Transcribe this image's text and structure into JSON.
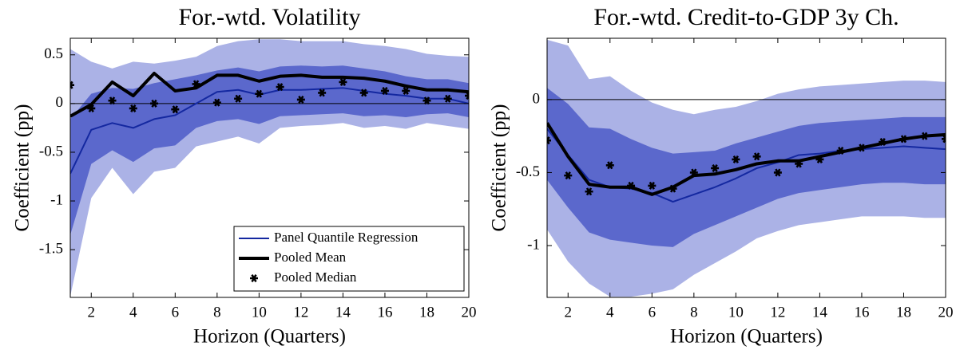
{
  "chart_data": [
    {
      "type": "line",
      "title": "For.-wtd. Volatility",
      "xlabel": "Horizon (Quarters)",
      "ylabel": "Coefficient (pp)",
      "x": [
        1,
        2,
        3,
        4,
        5,
        6,
        7,
        8,
        9,
        10,
        11,
        12,
        13,
        14,
        15,
        16,
        17,
        18,
        19,
        20
      ],
      "xlim": [
        1,
        20
      ],
      "xticks": [
        2,
        4,
        6,
        8,
        10,
        12,
        14,
        16,
        18,
        20
      ],
      "ylim": [
        -1.99,
        0.67
      ],
      "yticks": [
        -1.5,
        -1,
        -0.5,
        0,
        0.5
      ],
      "hline": 0,
      "legend": "lower right",
      "bands": [
        {
          "color": "#abb2e6",
          "upper": [
            0.56,
            0.43,
            0.36,
            0.43,
            0.41,
            0.44,
            0.48,
            0.59,
            0.64,
            0.66,
            0.66,
            0.64,
            0.64,
            0.64,
            0.61,
            0.59,
            0.56,
            0.51,
            0.49,
            0.48
          ],
          "lower": [
            -1.98,
            -0.97,
            -0.66,
            -0.93,
            -0.7,
            -0.66,
            -0.44,
            -0.39,
            -0.34,
            -0.41,
            -0.25,
            -0.23,
            -0.22,
            -0.2,
            -0.25,
            -0.23,
            -0.26,
            -0.2,
            -0.23,
            -0.26
          ]
        },
        {
          "color": "#5b68cc",
          "upper": [
            -0.16,
            0.1,
            0.16,
            0.15,
            0.21,
            0.25,
            0.29,
            0.34,
            0.37,
            0.33,
            0.38,
            0.39,
            0.38,
            0.39,
            0.36,
            0.33,
            0.28,
            0.25,
            0.25,
            0.21
          ],
          "lower": [
            -1.35,
            -0.62,
            -0.48,
            -0.6,
            -0.46,
            -0.43,
            -0.25,
            -0.18,
            -0.16,
            -0.21,
            -0.13,
            -0.12,
            -0.11,
            -0.1,
            -0.13,
            -0.12,
            -0.14,
            -0.11,
            -0.1,
            -0.14
          ]
        }
      ],
      "series": [
        {
          "name": "Panel Quantile Regression",
          "color": "#1428a0",
          "style": "line",
          "width": 2,
          "values": [
            -0.72,
            -0.27,
            -0.2,
            -0.25,
            -0.16,
            -0.12,
            0.0,
            0.12,
            0.14,
            0.09,
            0.14,
            0.14,
            0.15,
            0.16,
            0.13,
            0.1,
            0.08,
            0.05,
            0.05,
            0.0
          ]
        },
        {
          "name": "Pooled Mean",
          "color": "#000000",
          "style": "line",
          "width": 4,
          "values": [
            -0.13,
            -0.01,
            0.22,
            0.08,
            0.31,
            0.13,
            0.16,
            0.29,
            0.29,
            0.23,
            0.28,
            0.29,
            0.27,
            0.27,
            0.26,
            0.23,
            0.18,
            0.14,
            0.14,
            0.12
          ]
        },
        {
          "name": "Pooled Median",
          "color": "#000000",
          "style": "marker",
          "values": [
            0.19,
            -0.05,
            0.03,
            -0.05,
            0.0,
            -0.06,
            0.2,
            0.01,
            0.05,
            0.1,
            0.17,
            0.04,
            0.11,
            0.22,
            0.11,
            0.13,
            0.13,
            0.03,
            0.05,
            0.08
          ]
        }
      ]
    },
    {
      "type": "line",
      "title": "For.-wtd. Credit-to-GDP 3y Ch.",
      "xlabel": "Horizon (Quarters)",
      "ylabel": "Coefficient (pp)",
      "x": [
        1,
        2,
        3,
        4,
        5,
        6,
        7,
        8,
        9,
        10,
        11,
        12,
        13,
        14,
        15,
        16,
        17,
        18,
        19,
        20
      ],
      "xlim": [
        1,
        20
      ],
      "xticks": [
        2,
        4,
        6,
        8,
        10,
        12,
        14,
        16,
        18,
        20
      ],
      "ylim": [
        -1.355,
        0.42
      ],
      "yticks": [
        -1,
        -0.5,
        0
      ],
      "hline": 0,
      "bands": [
        {
          "color": "#abb2e6",
          "upper": [
            0.41,
            0.37,
            0.14,
            0.16,
            0.06,
            -0.02,
            -0.07,
            -0.1,
            -0.07,
            -0.05,
            -0.01,
            0.04,
            0.07,
            0.09,
            0.1,
            0.11,
            0.12,
            0.13,
            0.13,
            0.12
          ],
          "lower": [
            -0.89,
            -1.11,
            -1.26,
            -1.35,
            -1.35,
            -1.33,
            -1.3,
            -1.2,
            -1.12,
            -1.04,
            -0.95,
            -0.9,
            -0.86,
            -0.84,
            -0.82,
            -0.8,
            -0.8,
            -0.8,
            -0.81,
            -0.81
          ]
        },
        {
          "color": "#5b68cc",
          "upper": [
            0.08,
            -0.03,
            -0.19,
            -0.2,
            -0.27,
            -0.33,
            -0.37,
            -0.36,
            -0.35,
            -0.3,
            -0.26,
            -0.22,
            -0.18,
            -0.16,
            -0.15,
            -0.14,
            -0.13,
            -0.12,
            -0.12,
            -0.12
          ],
          "lower": [
            -0.55,
            -0.74,
            -0.91,
            -0.96,
            -0.98,
            -1.0,
            -1.01,
            -0.92,
            -0.86,
            -0.8,
            -0.74,
            -0.68,
            -0.64,
            -0.62,
            -0.6,
            -0.58,
            -0.57,
            -0.57,
            -0.58,
            -0.58
          ]
        }
      ],
      "series": [
        {
          "color": "#1428a0",
          "style": "line",
          "width": 2,
          "values": [
            -0.2,
            -0.38,
            -0.55,
            -0.6,
            -0.61,
            -0.64,
            -0.7,
            -0.65,
            -0.6,
            -0.54,
            -0.47,
            -0.43,
            -0.38,
            -0.37,
            -0.35,
            -0.34,
            -0.33,
            -0.32,
            -0.33,
            -0.34
          ]
        },
        {
          "color": "#000000",
          "style": "line",
          "width": 4,
          "values": [
            -0.16,
            -0.39,
            -0.58,
            -0.6,
            -0.6,
            -0.65,
            -0.6,
            -0.52,
            -0.51,
            -0.48,
            -0.44,
            -0.42,
            -0.42,
            -0.39,
            -0.36,
            -0.33,
            -0.3,
            -0.27,
            -0.25,
            -0.24
          ]
        },
        {
          "color": "#000000",
          "style": "marker",
          "values": [
            -0.28,
            -0.52,
            -0.63,
            -0.45,
            -0.59,
            -0.59,
            -0.61,
            -0.5,
            -0.47,
            -0.41,
            -0.39,
            -0.5,
            -0.44,
            -0.41,
            -0.35,
            -0.33,
            -0.29,
            -0.27,
            -0.25,
            -0.27
          ]
        }
      ]
    }
  ]
}
